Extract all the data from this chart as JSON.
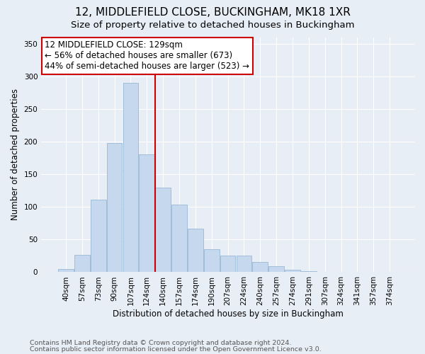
{
  "title1": "12, MIDDLEFIELD CLOSE, BUCKINGHAM, MK18 1XR",
  "title2": "Size of property relative to detached houses in Buckingham",
  "xlabel": "Distribution of detached houses by size in Buckingham",
  "ylabel": "Number of detached properties",
  "categories": [
    "40sqm",
    "57sqm",
    "73sqm",
    "90sqm",
    "107sqm",
    "124sqm",
    "140sqm",
    "157sqm",
    "174sqm",
    "190sqm",
    "207sqm",
    "224sqm",
    "240sqm",
    "257sqm",
    "274sqm",
    "291sqm",
    "307sqm",
    "324sqm",
    "341sqm",
    "357sqm",
    "374sqm"
  ],
  "values": [
    5,
    27,
    111,
    198,
    290,
    181,
    130,
    103,
    67,
    35,
    25,
    25,
    16,
    9,
    4,
    2,
    1,
    0,
    0,
    0,
    1
  ],
  "bar_color": "#c5d8ed",
  "bar_edge_color": "#9ab8d5",
  "vline_color": "#cc0000",
  "vline_pos": 5.5,
  "annotation_text": "12 MIDDLEFIELD CLOSE: 129sqm\n← 56% of detached houses are smaller (673)\n44% of semi-detached houses are larger (523) →",
  "annotation_box_facecolor": "#ffffff",
  "annotation_box_edgecolor": "#cc0000",
  "bg_color": "#e8eef6",
  "plot_bg_color": "#e8eef6",
  "footer1": "Contains HM Land Registry data © Crown copyright and database right 2024.",
  "footer2": "Contains public sector information licensed under the Open Government Licence v3.0.",
  "ylim": [
    0,
    360
  ],
  "yticks": [
    0,
    50,
    100,
    150,
    200,
    250,
    300,
    350
  ],
  "title1_fontsize": 11,
  "title2_fontsize": 9.5,
  "axis_label_fontsize": 8.5,
  "tick_fontsize": 7.5,
  "footer_fontsize": 6.8,
  "annotation_fontsize": 8.5
}
